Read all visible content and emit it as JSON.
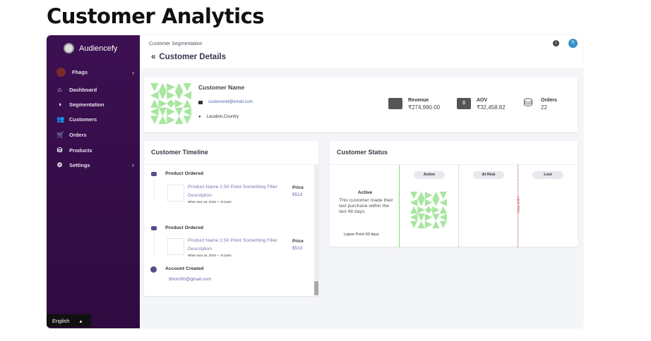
{
  "page_title": "Customer Analytics",
  "sidebar": {
    "brand": "Audiencefy",
    "user": "Fhags",
    "items": [
      {
        "label": "Dashboard",
        "icon": "home-icon"
      },
      {
        "label": "Segmentation",
        "icon": "pie-chart-icon"
      },
      {
        "label": "Customers",
        "icon": "users-icon"
      },
      {
        "label": "Orders",
        "icon": "cart-icon"
      },
      {
        "label": "Products",
        "icon": "basket-icon"
      },
      {
        "label": "Settings",
        "icon": "gear-icon"
      }
    ],
    "language": "English"
  },
  "header": {
    "breadcrumb": "Customer Segmentation",
    "title": "Customer Details",
    "back_icon": "«",
    "avatar": "R"
  },
  "customer": {
    "name": "Customer Name",
    "email": "customerid@email.com",
    "location": "Location,Country",
    "metrics": [
      {
        "label": "Revenue",
        "value": "₹274,990.00",
        "icon": "wallet-icon"
      },
      {
        "label": "AOV",
        "value": "₹32,458.82",
        "icon": "money-icon"
      },
      {
        "label": "Orders",
        "value": "22",
        "icon": "basket-icon"
      }
    ]
  },
  "timeline": {
    "title": "Customer Timeline",
    "events": [
      {
        "type": "Product Ordered",
        "product": "Product Name 2.50 Point Something Filler Description",
        "when": "When   Nov 16, 2019 — 8:14am",
        "price_label": "Price",
        "price": "$513"
      },
      {
        "type": "Product Ordered",
        "product": "Product Name 2.50 Point Something Filler Description",
        "when": "When   Nov 16, 2019 — 8:14am",
        "price_label": "Price",
        "price": "$513"
      }
    ],
    "account": {
      "type": "Account Created",
      "email": "tthorn90@gmail.com"
    }
  },
  "status": {
    "title": "Customer Status",
    "current": "Active",
    "description": "This customer made their last purchase within the last 48 days.",
    "lapse": "Lapse Point 60 days",
    "columns": [
      {
        "label": "Active",
        "color": "#8fd67e"
      },
      {
        "label": "At Risk",
        "color": "#e0b080"
      },
      {
        "label": "Lost",
        "color": "#c04040"
      }
    ],
    "marker": "Lapse Point"
  },
  "colors": {
    "sidebar": "#3d1052",
    "identicon": "#a8e6a0",
    "link": "#6a64aa"
  }
}
